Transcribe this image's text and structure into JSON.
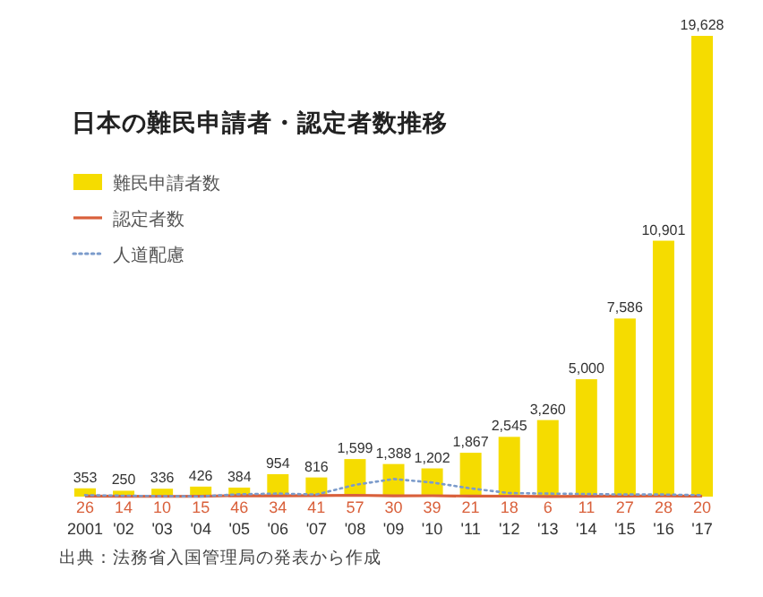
{
  "chart_data": {
    "type": "bar",
    "title": "日本の難民申請者・認定者数推移",
    "categories": [
      "2001",
      "'02",
      "'03",
      "'04",
      "'05",
      "'06",
      "'07",
      "'08",
      "'09",
      "'10",
      "'11",
      "'12",
      "'13",
      "'14",
      "'15",
      "'16",
      "'17"
    ],
    "series": [
      {
        "name": "難民申請者数",
        "color": "#f5dc00",
        "values": [
          353,
          250,
          336,
          426,
          384,
          954,
          816,
          1599,
          1388,
          1202,
          1867,
          2545,
          3260,
          5000,
          7586,
          10901,
          19628
        ],
        "value_labels": [
          "353",
          "250",
          "336",
          "426",
          "384",
          "954",
          "816",
          "1,599",
          "1,388",
          "1,202",
          "1,867",
          "2,545",
          "3,260",
          "5,000",
          "7,586",
          "10,901",
          "19,628"
        ]
      },
      {
        "name": "認定者数",
        "type": "line",
        "color": "#d9603b",
        "values": [
          26,
          14,
          10,
          15,
          46,
          34,
          41,
          57,
          30,
          39,
          21,
          18,
          6,
          11,
          27,
          28,
          20
        ],
        "value_labels": [
          "26",
          "14",
          "10",
          "15",
          "46",
          "34",
          "41",
          "57",
          "30",
          "39",
          "21",
          "18",
          "6",
          "11",
          "27",
          "28",
          "20"
        ]
      },
      {
        "name": "人道配慮",
        "type": "line",
        "color": "#7b9bcb",
        "line_style": "dotted",
        "values": [
          60,
          40,
          20,
          10,
          100,
          130,
          90,
          500,
          750,
          600,
          350,
          150,
          130,
          110,
          90,
          90,
          60
        ]
      }
    ],
    "legend": "top left",
    "annotations": [
      "出典：法務省入国管理局の発表から作成"
    ]
  }
}
